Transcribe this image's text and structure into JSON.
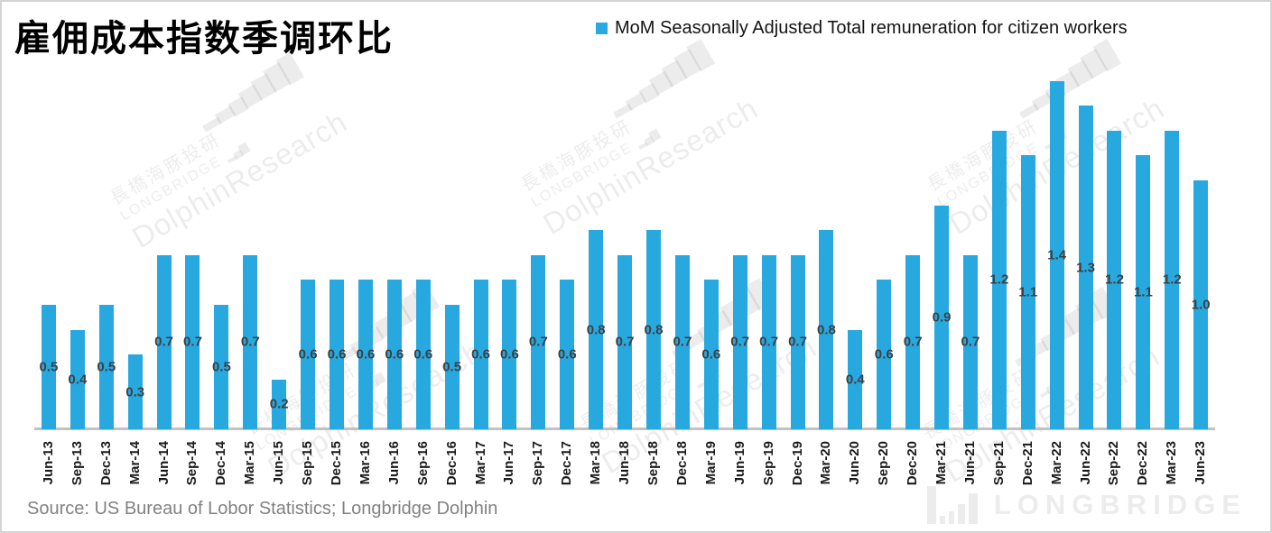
{
  "title": "雇佣成本指数季调环比",
  "legend": {
    "label": "MoM Seasonally Adjusted Total remuneration for citizen workers",
    "marker_color": "#29A9E1"
  },
  "source": "Source: US Bureau of Lobor Statistics; Longbridge Dolphin",
  "watermark": {
    "bars_glyph": "▂▃▄▅▆▇█",
    "bars_glyph_small": "▂▄▆",
    "line_cn": "長橋海豚投研",
    "line_brand": "LONGBRIDGE",
    "line_research": "DolphinResearch",
    "footer_brand": "LONGBRIDGE"
  },
  "colors": {
    "bar": "#27A9E0",
    "value_label": "#3f3f3f",
    "axis_line": "#c2c2c2",
    "source_text": "#828282"
  },
  "chart_data": {
    "type": "bar",
    "title": "雇佣成本指数季调环比",
    "legend": "MoM Seasonally Adjusted Total remuneration for citizen workers",
    "categories": [
      "Jun-13",
      "Sep-13",
      "Dec-13",
      "Mar-14",
      "Jun-14",
      "Sep-14",
      "Dec-14",
      "Mar-15",
      "Jun-15",
      "Sep-15",
      "Dec-15",
      "Mar-16",
      "Jun-16",
      "Sep-16",
      "Dec-16",
      "Mar-17",
      "Jun-17",
      "Sep-17",
      "Dec-17",
      "Mar-18",
      "Jun-18",
      "Sep-18",
      "Dec-18",
      "Mar-19",
      "Jun-19",
      "Sep-19",
      "Dec-19",
      "Mar-20",
      "Jun-20",
      "Sep-20",
      "Dec-20",
      "Mar-21",
      "Jun-21",
      "Sep-21",
      "Dec-21",
      "Mar-22",
      "Jun-22",
      "Sep-22",
      "Dec-22",
      "Mar-23",
      "Jun-23"
    ],
    "values": [
      0.5,
      0.4,
      0.5,
      0.3,
      0.7,
      0.7,
      0.5,
      0.7,
      0.2,
      0.6,
      0.6,
      0.6,
      0.6,
      0.6,
      0.5,
      0.6,
      0.6,
      0.7,
      0.6,
      0.8,
      0.7,
      0.8,
      0.7,
      0.6,
      0.7,
      0.7,
      0.7,
      0.8,
      0.4,
      0.6,
      0.7,
      0.9,
      0.7,
      1.2,
      1.1,
      1.4,
      1.3,
      1.2,
      1.1,
      1.2,
      1.0
    ],
    "value_labels_decimals": 1,
    "bar_color": "#27A9E0",
    "ylim": [
      0,
      1.5
    ],
    "grid": false,
    "legend_position": "top-right",
    "x_tick_rotation": 90
  }
}
